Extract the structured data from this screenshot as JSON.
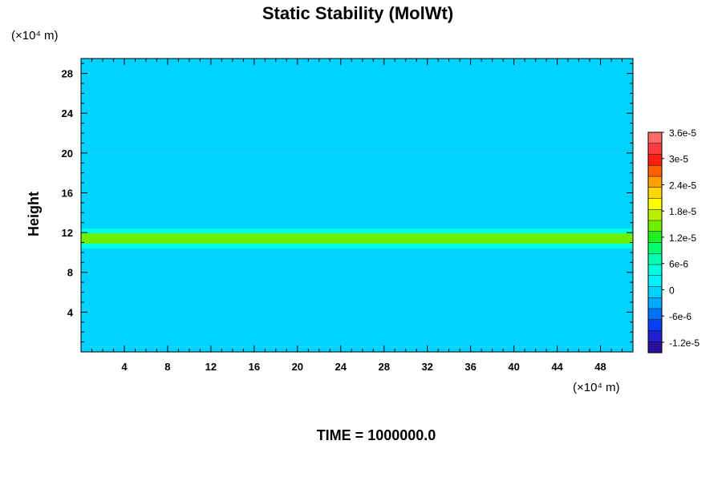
{
  "chart_data": {
    "type": "heatmap",
    "title": "Static Stability (MolWt)",
    "ylabel": "Height",
    "y_unit": "(×10⁴ m)",
    "x_unit": "(×10⁴ m)",
    "footer": "TIME = 1000000.0",
    "xlim": [
      0,
      51
    ],
    "ylim": [
      0,
      29.5
    ],
    "x_ticks": [
      4,
      8,
      12,
      16,
      20,
      24,
      28,
      32,
      36,
      40,
      44,
      48
    ],
    "y_ticks": [
      4,
      8,
      12,
      16,
      20,
      24,
      28
    ],
    "x_tick_labels": [
      "4",
      "8",
      "12",
      "16",
      "20",
      "24",
      "28",
      "32",
      "36",
      "40",
      "44",
      "48"
    ],
    "y_tick_labels": [
      "4",
      "8",
      "12",
      "16",
      "20",
      "24",
      "28"
    ],
    "colorbar": {
      "min": -1.44e-05,
      "max": 3.6e-05,
      "label_values": [
        3.6e-05,
        3e-05,
        2.4e-05,
        1.8e-05,
        1.2e-05,
        6e-06,
        0,
        -6e-06,
        -1.2e-05
      ],
      "labels": [
        "3.6e-5",
        "3e-5",
        "2.4e-5",
        "1.8e-5",
        "1.2e-5",
        "6e-6",
        "0",
        "-6e-6",
        "-1.2e-5"
      ],
      "colors": [
        "#2a0f9a",
        "#1f1fd0",
        "#0a3ff0",
        "#0070ff",
        "#00a8ff",
        "#00d2ff",
        "#00f0ff",
        "#00ffe0",
        "#00ffb0",
        "#00ff70",
        "#20f020",
        "#70f000",
        "#b8f000",
        "#ffff00",
        "#ffd800",
        "#ffa000",
        "#ff6000",
        "#ff2010",
        "#ff3c40",
        "#ff6a6a"
      ]
    },
    "field_levels": [
      {
        "y_range": [
          0,
          0.5
        ],
        "value": 3e-07
      },
      {
        "y_range": [
          0.5,
          20
        ],
        "value": 6e-07
      },
      {
        "y_range": [
          20,
          29.5
        ],
        "value": -1.5e-06
      }
    ],
    "band_features": [
      {
        "x_range": [
          0,
          51
        ],
        "y_range": [
          10.9,
          11.9
        ],
        "value": 1.5e-05
      },
      {
        "x_range": [
          0,
          51
        ],
        "y_range": [
          10.4,
          12.4
        ],
        "value": 4e-06
      }
    ],
    "cell_features": [
      {
        "x_center": 5.5,
        "y_center": 24.2,
        "half_width": 5.5,
        "half_height": 1.2,
        "value": -4e-07
      },
      {
        "x_center": 17.2,
        "y_center": 24.2,
        "half_width": 6.5,
        "half_height": 1.4,
        "value": -4e-07
      },
      {
        "x_center": 36.2,
        "y_center": 24.2,
        "half_width": 5.2,
        "half_height": 1.2,
        "value": -4e-07
      }
    ]
  }
}
